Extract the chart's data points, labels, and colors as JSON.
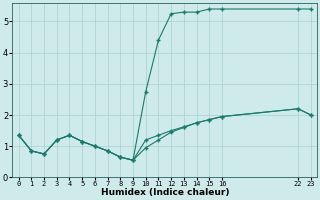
{
  "bg_color": "#ceeaea",
  "grid_color": "#aacfcf",
  "line_color": "#1a7a6e",
  "xlabel": "Humidex (Indice chaleur)",
  "xlim": [
    -0.5,
    23.5
  ],
  "ylim": [
    0,
    5.6
  ],
  "yticks": [
    0,
    1,
    2,
    3,
    4,
    5
  ],
  "xtick_positions": [
    0,
    1,
    2,
    3,
    4,
    5,
    6,
    7,
    8,
    9,
    10,
    11,
    12,
    13,
    14,
    15,
    16,
    22,
    23
  ],
  "xtick_labels": [
    "0",
    "1",
    "2",
    "3",
    "4",
    "5",
    "6",
    "7",
    "8",
    "9",
    "10",
    "11",
    "12",
    "13",
    "14",
    "15",
    "16",
    "22",
    "23"
  ],
  "series1_x": [
    0,
    1,
    2,
    3,
    4,
    5,
    6,
    7,
    8,
    9,
    10,
    11,
    12,
    13,
    14,
    15,
    16,
    22,
    23
  ],
  "series1_y": [
    1.35,
    0.85,
    0.75,
    1.2,
    1.35,
    1.15,
    1.0,
    0.85,
    0.65,
    0.55,
    0.95,
    1.2,
    1.45,
    1.6,
    1.75,
    1.85,
    1.95,
    2.2,
    2.0
  ],
  "series2_x": [
    0,
    1,
    2,
    3,
    4,
    5,
    6,
    7,
    8,
    9,
    10,
    11,
    12,
    13,
    14,
    15,
    16,
    22,
    23
  ],
  "series2_y": [
    1.35,
    0.85,
    0.75,
    1.2,
    1.35,
    1.15,
    1.0,
    0.85,
    0.65,
    0.55,
    2.75,
    4.4,
    5.25,
    5.3,
    5.3,
    5.4,
    5.4,
    5.4,
    5.4
  ],
  "series3_x": [
    0,
    1,
    2,
    3,
    4,
    5,
    6,
    7,
    8,
    9,
    10,
    11,
    12,
    13,
    14,
    15,
    16,
    22,
    23
  ],
  "series3_y": [
    1.35,
    0.85,
    0.75,
    1.2,
    1.35,
    1.15,
    1.0,
    0.85,
    0.65,
    0.55,
    1.2,
    1.35,
    1.5,
    1.62,
    1.75,
    1.85,
    1.95,
    2.2,
    2.0
  ]
}
